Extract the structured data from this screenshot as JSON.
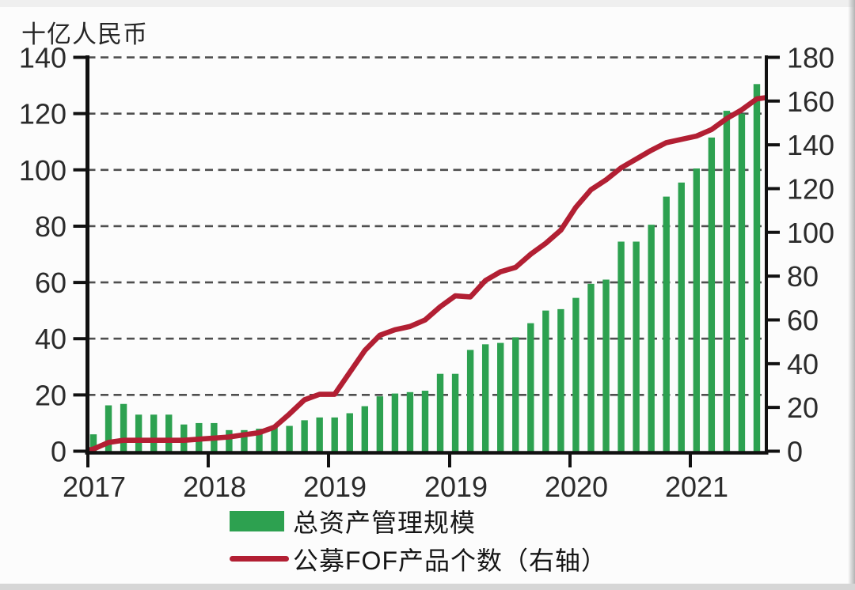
{
  "chart_data": {
    "type": "bar",
    "subtype": "combo-bar-line-dual-axis",
    "title": "",
    "unit_label": "十亿人民币",
    "x_tick_labels": [
      "2017",
      "2018",
      "2019",
      "2019",
      "2020",
      "2021"
    ],
    "left_axis": {
      "label": "十亿人民币",
      "ticks": [
        0,
        20,
        40,
        60,
        80,
        100,
        120,
        140
      ],
      "ylim": [
        0,
        140
      ]
    },
    "right_axis": {
      "ticks": [
        0,
        20,
        40,
        60,
        80,
        100,
        120,
        140,
        160,
        180
      ],
      "ylim": [
        0,
        180
      ]
    },
    "grid": "horizontal-dashed",
    "legend_position": "bottom",
    "series": [
      {
        "name": "总资产管理规模",
        "type": "bar",
        "axis": "left",
        "color": "#2da150",
        "values": [
          6,
          16.3,
          16.8,
          13,
          13,
          13,
          9.5,
          10,
          10,
          7.5,
          7.5,
          8,
          9,
          9,
          11,
          12,
          12,
          13.5,
          16,
          19.5,
          20.5,
          21,
          21.5,
          27.5,
          27.5,
          36,
          38,
          38.5,
          40.5,
          45.5,
          50,
          50.5,
          54.5,
          59.5,
          61,
          74.5,
          74.5,
          80.5,
          90.5,
          95.5,
          100.5,
          111.5,
          121,
          120,
          130.5
        ]
      },
      {
        "name": "公募FOF产品个数（右轴）",
        "type": "line",
        "axis": "right",
        "color": "#b21f33",
        "values": [
          1,
          4,
          5,
          5,
          5,
          5,
          5,
          5.5,
          6,
          6.5,
          7.5,
          8.5,
          11,
          17,
          23.5,
          26,
          26,
          36,
          46,
          53,
          55.5,
          57,
          60,
          66,
          71,
          70.5,
          78,
          82,
          84,
          90,
          95,
          101,
          111.5,
          119.5,
          124,
          129.5,
          133.5,
          137.5,
          141,
          142.5,
          144,
          147,
          152,
          156,
          161
        ]
      }
    ]
  },
  "legend": {
    "bar_label": "总资产管理规模",
    "line_label": "公募FOF产品个数（右轴）"
  },
  "colors": {
    "bar": "#2da150",
    "line": "#b21f33",
    "grid": "#4f4f4f",
    "axis": "#111111",
    "text": "#2b2b2b"
  }
}
